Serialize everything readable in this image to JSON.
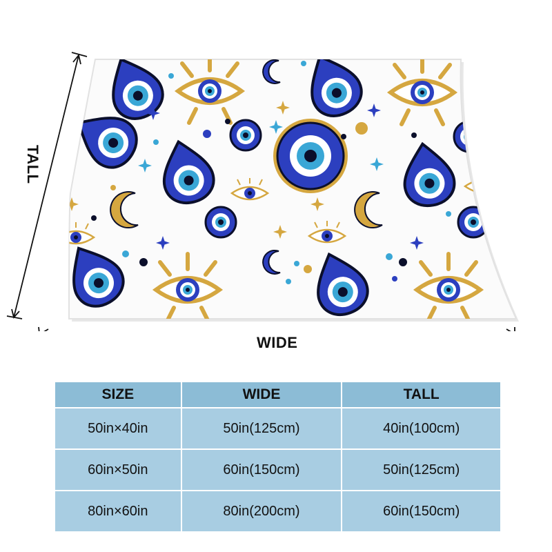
{
  "product": {
    "pattern": "evil eye, gold eye, moon and star pattern on white",
    "colors": {
      "cobalt": "#2c3fbf",
      "sky": "#3aa7d6",
      "gold": "#d5a740",
      "navy": "#0b0f2b",
      "background": "#ffffff"
    },
    "icons": [
      "evil-eye-icon",
      "gold-eye-icon",
      "crescent-moon-icon",
      "sparkle-star-icon",
      "dot-icon"
    ]
  },
  "dimensions": {
    "wide_label": "WIDE",
    "tall_label": "TALL"
  },
  "size_table": {
    "headers": [
      "SIZE",
      "WIDE",
      "TALL"
    ],
    "rows": [
      [
        "50in×40in",
        "50in(125cm)",
        "40in(100cm)"
      ],
      [
        "60in×50in",
        "60in(150cm)",
        "50in(125cm)"
      ],
      [
        "80in×60in",
        "80in(200cm)",
        "60in(150cm)"
      ]
    ]
  }
}
